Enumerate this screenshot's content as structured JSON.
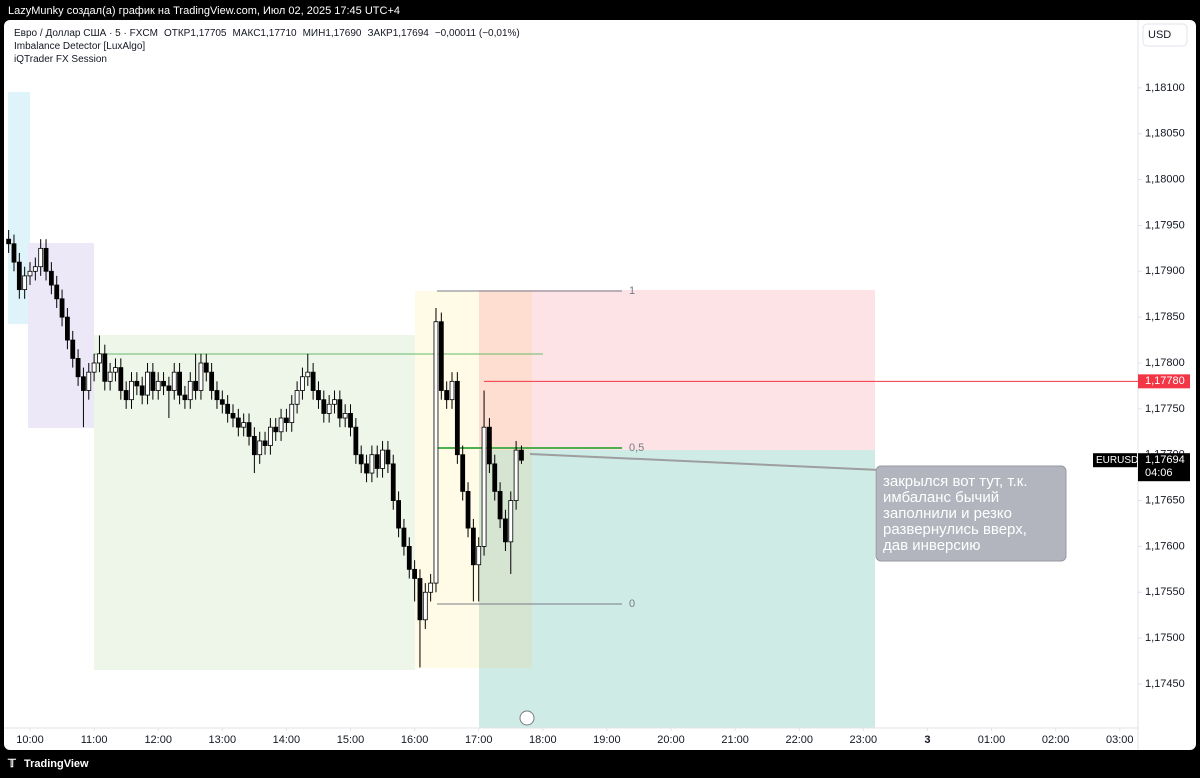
{
  "header": {
    "attribution": "LazyMunky создал(а) график на TradingView.com, Июл 02, 2025 17:45 UTC+4",
    "brand": "TradingView"
  },
  "chart_data": {
    "type": "candlestick",
    "title": "Евро / Доллар США · 5 · FXCM",
    "ohlc_legend": [
      "ОТКР1,17705",
      "МАКС1,17710",
      "МИН1,17690",
      "ЗАКР1,17694",
      "−0,00011 (−0,01%)"
    ],
    "indicators": [
      "Imbalance Detector [LuxAlgo]",
      "iQTrader FX Session"
    ],
    "currency": "USD",
    "x": [
      580,
      585,
      590,
      595,
      600,
      605,
      610,
      615,
      620,
      625,
      630,
      635,
      640,
      645,
      650,
      655,
      660,
      665,
      670,
      675,
      680,
      685,
      690,
      695,
      700,
      705,
      710,
      715,
      720,
      725,
      730,
      735,
      740,
      745,
      750,
      755,
      760,
      765,
      770,
      775,
      780,
      785,
      790,
      795,
      800,
      805,
      810,
      815,
      820,
      825,
      830,
      835,
      840,
      845,
      850,
      855,
      860,
      865,
      870,
      875,
      880,
      885,
      890,
      895,
      900,
      905,
      910,
      915,
      920,
      925,
      930,
      935,
      940,
      945,
      950,
      955,
      960,
      965,
      970,
      975,
      980,
      985,
      990,
      995,
      1000,
      1005,
      1010,
      1015,
      1020,
      1025,
      1030,
      1035,
      1040,
      1045,
      1050,
      1055,
      1060
    ],
    "open": [
      1.17935,
      1.1793,
      1.1791,
      1.1788,
      1.17895,
      1.179,
      1.17905,
      1.17925,
      1.179,
      1.17885,
      1.1787,
      1.1785,
      1.17825,
      1.17805,
      1.17785,
      1.1777,
      1.1779,
      1.178,
      1.1781,
      1.1778,
      1.1779,
      1.17795,
      1.1777,
      1.1776,
      1.1778,
      1.17775,
      1.17765,
      1.1779,
      1.1777,
      1.1778,
      1.17775,
      1.1777,
      1.1779,
      1.17765,
      1.1776,
      1.1778,
      1.1777,
      1.178,
      1.1779,
      1.1777,
      1.1776,
      1.17755,
      1.17745,
      1.1774,
      1.1773,
      1.17735,
      1.1772,
      1.177,
      1.17715,
      1.1771,
      1.1773,
      1.17725,
      1.1774,
      1.17735,
      1.17755,
      1.1777,
      1.17785,
      1.1779,
      1.1777,
      1.1776,
      1.17745,
      1.17755,
      1.1776,
      1.1774,
      1.17745,
      1.1773,
      1.177,
      1.1769,
      1.1768,
      1.177,
      1.17685,
      1.17705,
      1.1769,
      1.1765,
      1.1762,
      1.176,
      1.17575,
      1.17565,
      1.1752,
      1.1755,
      1.1756,
      1.17845,
      1.1777,
      1.1776,
      1.1778,
      1.177,
      1.1766,
      1.1762,
      1.1758,
      1.176,
      1.1773,
      1.1769,
      1.1766,
      1.1763,
      1.17605,
      1.1765,
      1.17705
    ],
    "high": [
      1.17945,
      1.1794,
      1.1792,
      1.17905,
      1.1791,
      1.17915,
      1.17935,
      1.17935,
      1.1791,
      1.17895,
      1.1788,
      1.1786,
      1.17835,
      1.17815,
      1.17795,
      1.178,
      1.1781,
      1.1783,
      1.1782,
      1.178,
      1.17805,
      1.17805,
      1.1778,
      1.1779,
      1.1779,
      1.17785,
      1.178,
      1.178,
      1.1779,
      1.1779,
      1.17785,
      1.178,
      1.178,
      1.17775,
      1.1779,
      1.1781,
      1.1781,
      1.1781,
      1.178,
      1.1778,
      1.1777,
      1.17765,
      1.17755,
      1.1775,
      1.17745,
      1.17745,
      1.1773,
      1.17725,
      1.17725,
      1.1774,
      1.1774,
      1.1775,
      1.1775,
      1.17765,
      1.1778,
      1.17795,
      1.1781,
      1.178,
      1.1778,
      1.1777,
      1.17765,
      1.1777,
      1.1777,
      1.17755,
      1.17755,
      1.1774,
      1.1771,
      1.177,
      1.1771,
      1.1771,
      1.17715,
      1.17715,
      1.177,
      1.1766,
      1.1763,
      1.1761,
      1.17585,
      1.17575,
      1.1756,
      1.1757,
      1.1786,
      1.17855,
      1.1778,
      1.1779,
      1.1779,
      1.1771,
      1.1767,
      1.1763,
      1.1761,
      1.1777,
      1.1774,
      1.177,
      1.1767,
      1.1764,
      1.1766,
      1.17715,
      1.1771
    ],
    "low": [
      1.1792,
      1.179,
      1.1787,
      1.1787,
      1.17885,
      1.1789,
      1.17895,
      1.1789,
      1.17875,
      1.1786,
      1.1784,
      1.17815,
      1.17795,
      1.17775,
      1.1773,
      1.1776,
      1.1778,
      1.1779,
      1.1777,
      1.1777,
      1.1778,
      1.1776,
      1.1775,
      1.1775,
      1.17765,
      1.17755,
      1.17755,
      1.1776,
      1.1776,
      1.17765,
      1.1774,
      1.1776,
      1.17755,
      1.1775,
      1.1775,
      1.1776,
      1.1776,
      1.1778,
      1.1776,
      1.1775,
      1.17745,
      1.17735,
      1.1773,
      1.1772,
      1.1772,
      1.1771,
      1.1768,
      1.1769,
      1.177,
      1.177,
      1.17715,
      1.17715,
      1.17725,
      1.17725,
      1.17745,
      1.1776,
      1.17775,
      1.1776,
      1.1775,
      1.17735,
      1.17735,
      1.17745,
      1.1773,
      1.1773,
      1.1772,
      1.1769,
      1.1768,
      1.1767,
      1.1767,
      1.17675,
      1.17675,
      1.1768,
      1.1764,
      1.1761,
      1.1759,
      1.17565,
      1.1754,
      1.17468,
      1.1751,
      1.1754,
      1.1755,
      1.1776,
      1.1775,
      1.1775,
      1.1769,
      1.1765,
      1.1761,
      1.1754,
      1.1754,
      1.1759,
      1.1768,
      1.1765,
      1.1762,
      1.17595,
      1.1757,
      1.1764,
      1.1769
    ],
    "close": [
      1.1793,
      1.1791,
      1.1788,
      1.17895,
      1.179,
      1.17905,
      1.17925,
      1.179,
      1.17885,
      1.1787,
      1.1785,
      1.17825,
      1.17805,
      1.17785,
      1.1777,
      1.1779,
      1.178,
      1.1781,
      1.1778,
      1.1779,
      1.17795,
      1.1777,
      1.1776,
      1.1778,
      1.17775,
      1.17765,
      1.1779,
      1.1777,
      1.1778,
      1.17775,
      1.1777,
      1.1779,
      1.17765,
      1.1776,
      1.1778,
      1.1777,
      1.178,
      1.1779,
      1.1777,
      1.1776,
      1.17755,
      1.17745,
      1.1774,
      1.1773,
      1.17735,
      1.1772,
      1.177,
      1.17715,
      1.1771,
      1.1773,
      1.17725,
      1.1774,
      1.17735,
      1.17755,
      1.1777,
      1.17785,
      1.1779,
      1.1777,
      1.1776,
      1.17745,
      1.17755,
      1.1776,
      1.1774,
      1.17745,
      1.1773,
      1.177,
      1.1769,
      1.1768,
      1.177,
      1.17685,
      1.17705,
      1.1769,
      1.1765,
      1.1762,
      1.176,
      1.17575,
      1.17565,
      1.1752,
      1.1755,
      1.1756,
      1.17845,
      1.1777,
      1.1776,
      1.1778,
      1.177,
      1.1766,
      1.1762,
      1.1758,
      1.176,
      1.1773,
      1.1769,
      1.1766,
      1.1763,
      1.17605,
      1.1765,
      1.17705,
      1.17694
    ],
    "colors": {
      "up": "#ffffff",
      "down": "#000000",
      "wick": "#000000"
    },
    "xlim": [
      579.4,
      1637.1
    ],
    "xticks": [
      {
        "value": 600,
        "label": "10:00"
      },
      {
        "value": 660,
        "label": "11:00"
      },
      {
        "value": 720,
        "label": "12:00"
      },
      {
        "value": 780,
        "label": "13:00"
      },
      {
        "value": 840,
        "label": "14:00"
      },
      {
        "value": 900,
        "label": "15:00"
      },
      {
        "value": 960,
        "label": "16:00"
      },
      {
        "value": 1020,
        "label": "17:00"
      },
      {
        "value": 1080,
        "label": "18:00"
      },
      {
        "value": 1140,
        "label": "19:00"
      },
      {
        "value": 1200,
        "label": "20:00"
      },
      {
        "value": 1260,
        "label": "21:00"
      },
      {
        "value": 1320,
        "label": "22:00"
      },
      {
        "value": 1380,
        "label": "23:00"
      },
      {
        "value": 1440,
        "label": "3"
      },
      {
        "value": 1500,
        "label": "01:00"
      },
      {
        "value": 1560,
        "label": "02:00"
      },
      {
        "value": 1620,
        "label": "03:00"
      }
    ],
    "ylim": [
      1.17402,
      1.18174
    ],
    "yticks": [
      {
        "value": 1.1745,
        "label": "1,17450"
      },
      {
        "value": 1.175,
        "label": "1,17500"
      },
      {
        "value": 1.1755,
        "label": "1,17550"
      },
      {
        "value": 1.176,
        "label": "1,17600"
      },
      {
        "value": 1.1765,
        "label": "1,17650"
      },
      {
        "value": 1.177,
        "label": "1,17700"
      },
      {
        "value": 1.1775,
        "label": "1,17750"
      },
      {
        "value": 1.178,
        "label": "1,17800"
      },
      {
        "value": 1.1785,
        "label": "1,17850"
      },
      {
        "value": 1.179,
        "label": "1,17900"
      },
      {
        "value": 1.1795,
        "label": "1,17950"
      },
      {
        "value": 1.18,
        "label": "1,18000"
      },
      {
        "value": 1.1805,
        "label": "1,18050"
      },
      {
        "value": 1.181,
        "label": "1,18100"
      }
    ],
    "price_line": {
      "value": 1.1778,
      "label": "1,17780",
      "color": "#f23645"
    },
    "last_price": {
      "value": 1.17694,
      "label": "1,17694",
      "symbol": "EURUSD",
      "countdown": "04:06"
    },
    "fib_labels": [
      "1",
      "0,5",
      "0"
    ],
    "annotation": {
      "lines": [
        "закрылся вот тут, т.к.",
        "имбаланс бычий",
        "заполнили и резко",
        "развернулись вверх,",
        "дав инверсию"
      ]
    }
  }
}
